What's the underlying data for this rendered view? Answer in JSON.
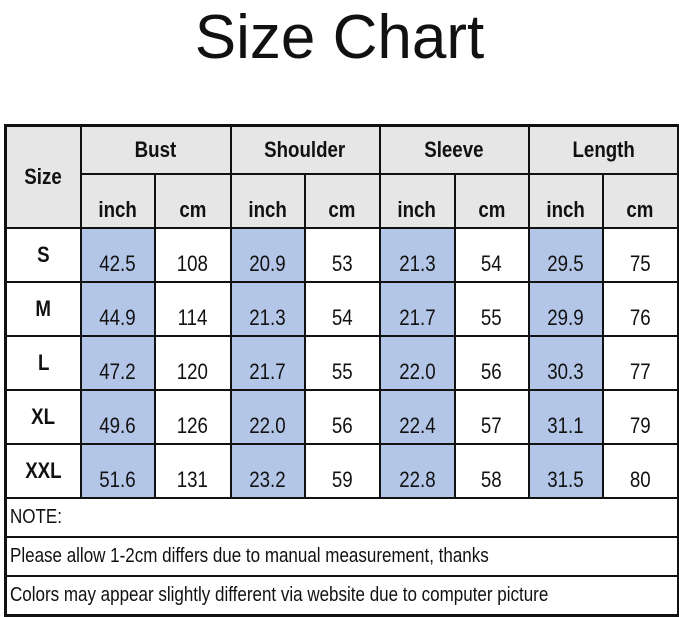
{
  "title": "Size Chart",
  "table": {
    "size_header": "Size",
    "groups": [
      "Bust",
      "Shoulder",
      "Sleeve",
      "Length"
    ],
    "units": [
      "inch",
      "cm"
    ],
    "rows": [
      {
        "size": "S",
        "values": [
          "42.5",
          "108",
          "20.9",
          "53",
          "21.3",
          "54",
          "29.5",
          "75"
        ]
      },
      {
        "size": "M",
        "values": [
          "44.9",
          "114",
          "21.3",
          "54",
          "21.7",
          "55",
          "29.9",
          "76"
        ]
      },
      {
        "size": "L",
        "values": [
          "47.2",
          "120",
          "21.7",
          "55",
          "22.0",
          "56",
          "30.3",
          "77"
        ]
      },
      {
        "size": "XL",
        "values": [
          "49.6",
          "126",
          "22.0",
          "56",
          "22.4",
          "57",
          "31.1",
          "79"
        ]
      },
      {
        "size": "XXL",
        "values": [
          "51.6",
          "131",
          "23.2",
          "59",
          "22.8",
          "58",
          "31.5",
          "80"
        ]
      }
    ],
    "notes": [
      "NOTE:",
      "Please allow 1-2cm differs due to manual measurement, thanks",
      "Colors may appear slightly different via website due to computer picture"
    ]
  },
  "colors": {
    "header_bg": "#e6e6e6",
    "inch_highlight": "#b4c6e7"
  }
}
